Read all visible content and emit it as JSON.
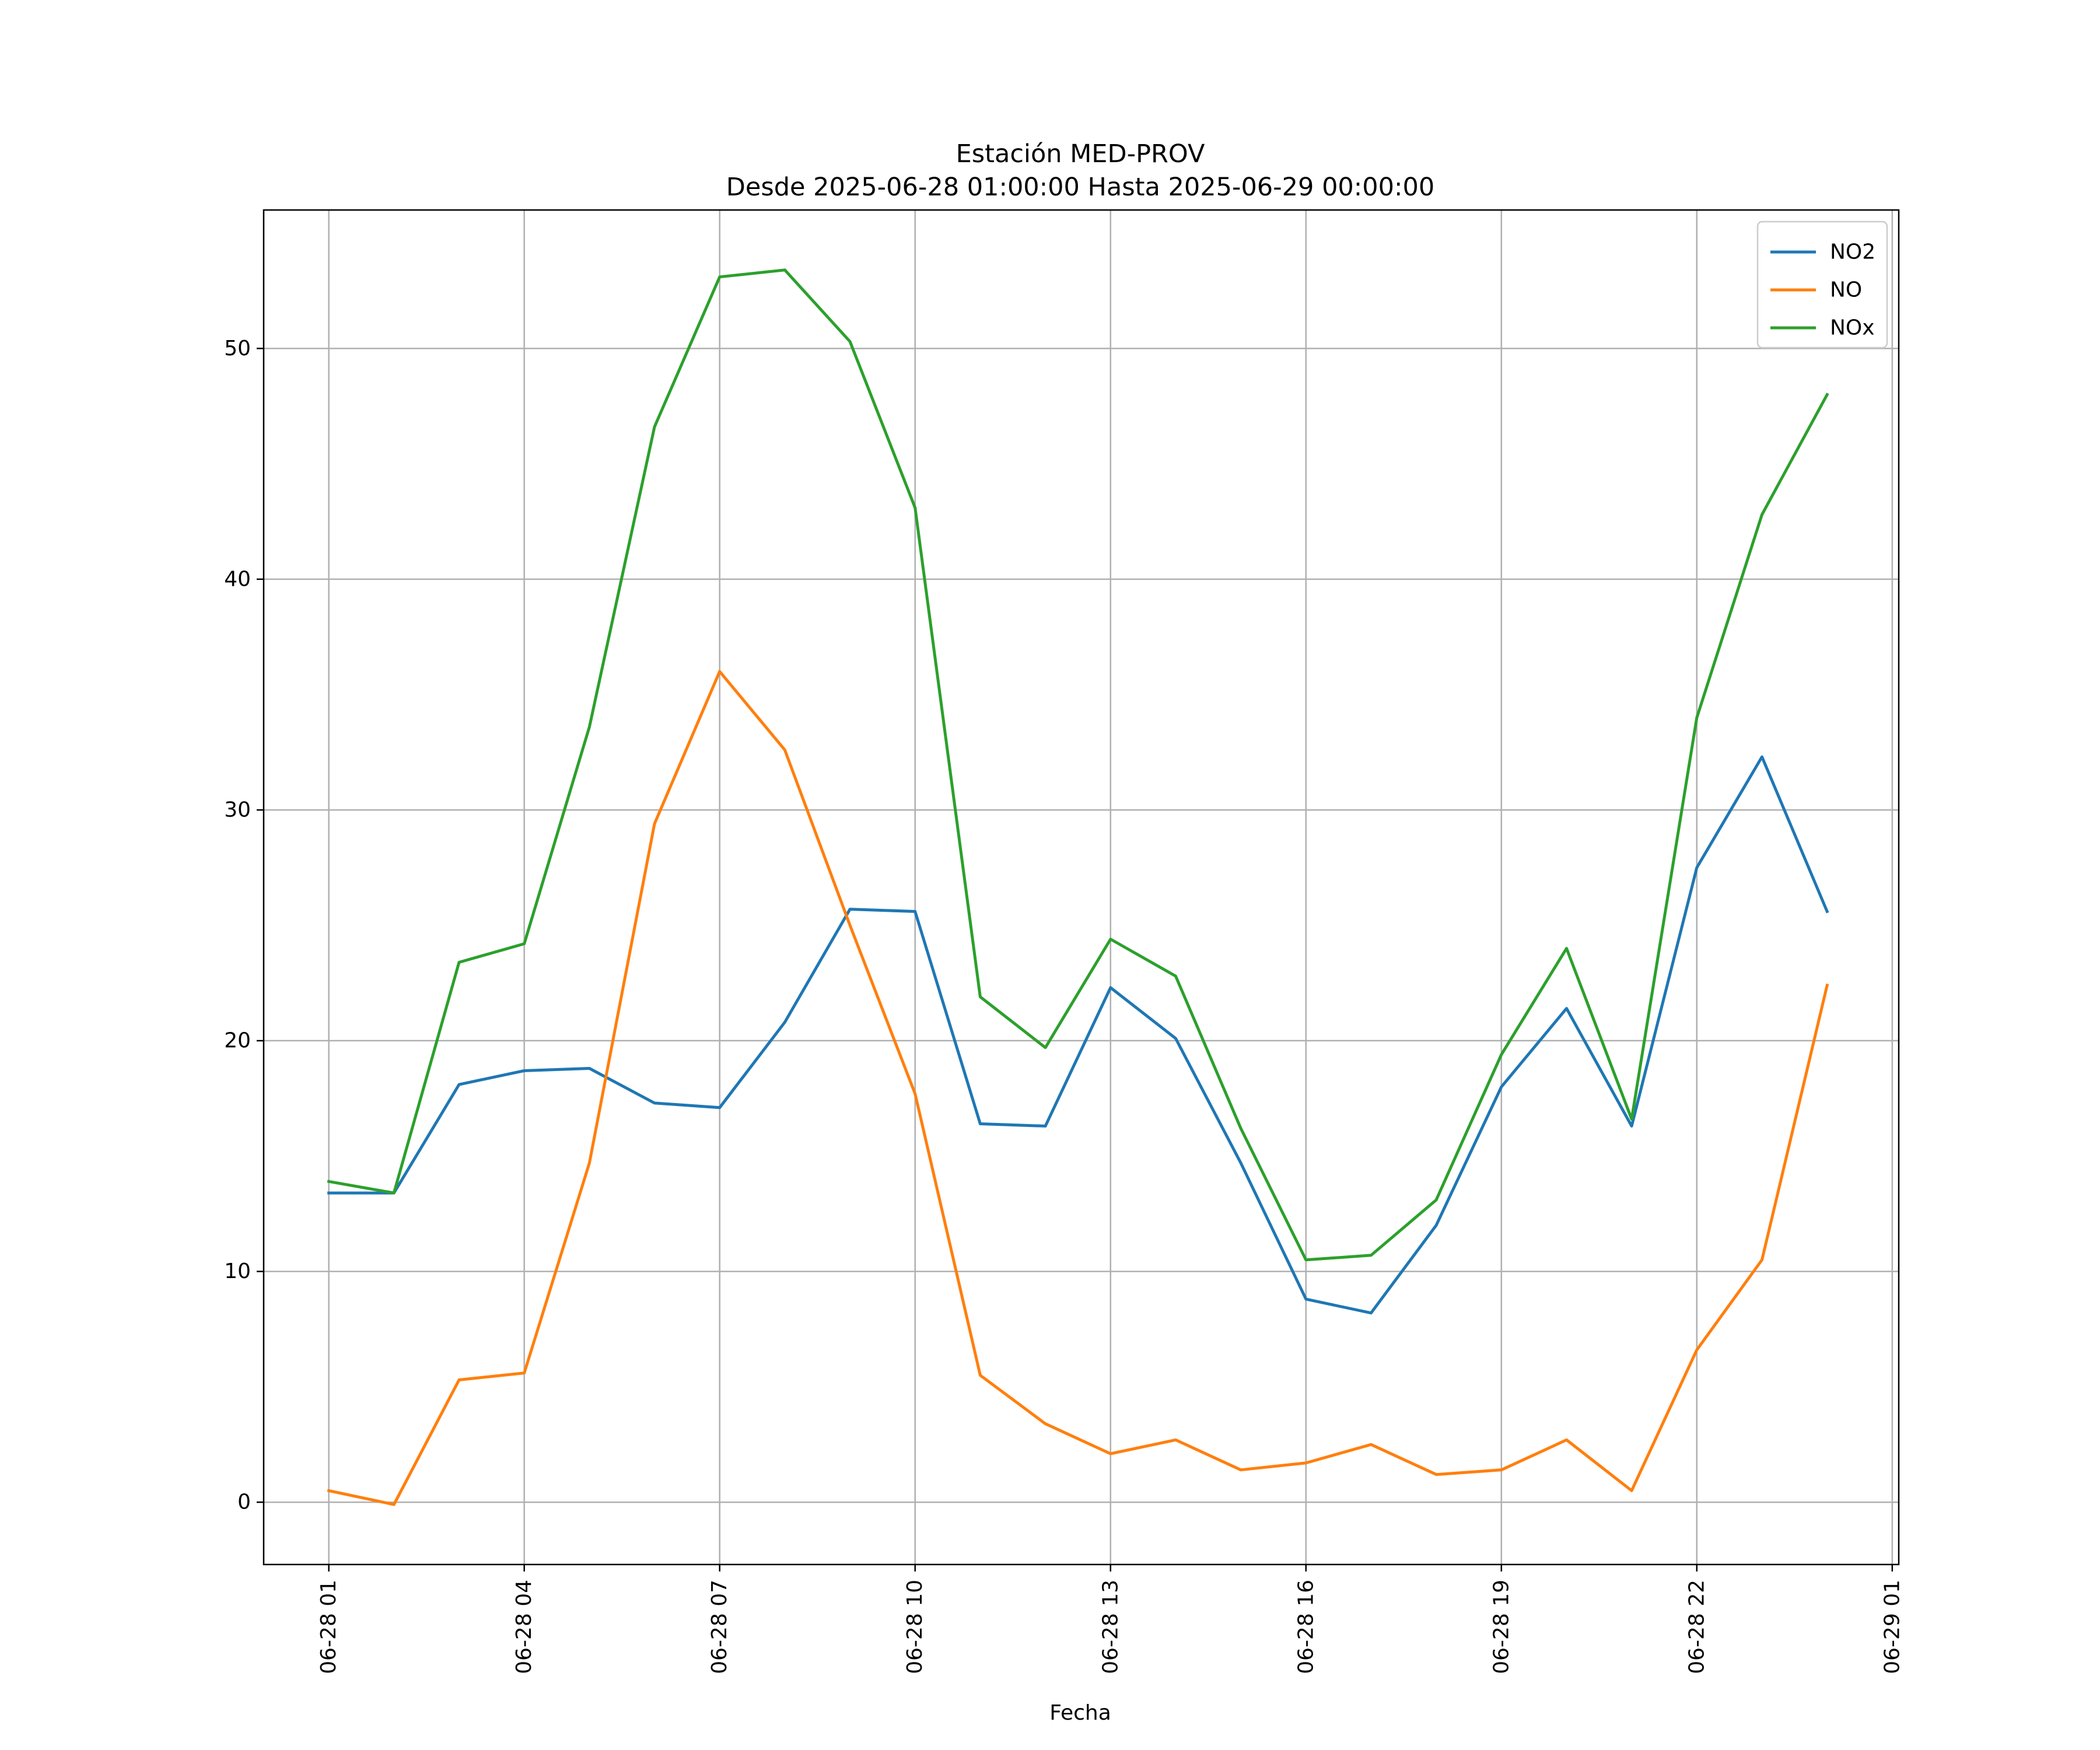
{
  "chart_data": {
    "type": "line",
    "title": "Estación MED-PROV",
    "subtitle": "Desde 2025-06-28 01:00:00 Hasta 2025-06-29 00:00:00",
    "xlabel": "Fecha",
    "ylabel": "",
    "x": [
      "2025-06-28 01:00",
      "2025-06-28 02:00",
      "2025-06-28 03:00",
      "2025-06-28 04:00",
      "2025-06-28 05:00",
      "2025-06-28 06:00",
      "2025-06-28 07:00",
      "2025-06-28 08:00",
      "2025-06-28 09:00",
      "2025-06-28 10:00",
      "2025-06-28 11:00",
      "2025-06-28 12:00",
      "2025-06-28 13:00",
      "2025-06-28 14:00",
      "2025-06-28 15:00",
      "2025-06-28 16:00",
      "2025-06-28 17:00",
      "2025-06-28 18:00",
      "2025-06-28 19:00",
      "2025-06-28 20:00",
      "2025-06-28 21:00",
      "2025-06-28 22:00",
      "2025-06-28 23:00",
      "2025-06-29 00:00"
    ],
    "series": [
      {
        "name": "NO2",
        "color": "#1f77b4",
        "values": [
          13.4,
          13.4,
          18.1,
          18.7,
          18.8,
          17.3,
          17.1,
          20.8,
          25.7,
          25.6,
          16.4,
          16.3,
          22.3,
          20.1,
          14.7,
          8.8,
          8.2,
          12.0,
          18.0,
          21.4,
          16.3,
          27.5,
          32.3,
          25.6
        ]
      },
      {
        "name": "NO",
        "color": "#ff7f0e",
        "values": [
          0.5,
          -0.1,
          5.3,
          5.6,
          14.7,
          29.4,
          36.0,
          32.6,
          25.0,
          17.7,
          5.5,
          3.4,
          2.1,
          2.7,
          1.4,
          1.7,
          2.5,
          1.2,
          1.4,
          2.7,
          0.5,
          6.6,
          10.5,
          22.4
        ]
      },
      {
        "name": "NOx",
        "color": "#2ca02c",
        "values": [
          13.9,
          13.4,
          23.4,
          24.2,
          33.6,
          46.6,
          53.1,
          53.4,
          50.3,
          43.1,
          21.9,
          19.7,
          24.4,
          22.8,
          16.2,
          10.5,
          10.7,
          13.1,
          19.4,
          24.0,
          16.6,
          34.0,
          42.8,
          48.0
        ]
      }
    ],
    "x_ticks": [
      "06-28 01",
      "06-28 04",
      "06-28 07",
      "06-28 10",
      "06-28 13",
      "06-28 16",
      "06-28 19",
      "06-28 22",
      "06-29 01"
    ],
    "y_ticks": [
      0,
      10,
      20,
      30,
      40,
      50
    ],
    "ylim": [
      -2.7,
      56.0
    ],
    "xlim": [
      "2025-06-28 00:00",
      "2025-06-29 01:06"
    ],
    "grid": true,
    "legend_position": "top-right"
  }
}
